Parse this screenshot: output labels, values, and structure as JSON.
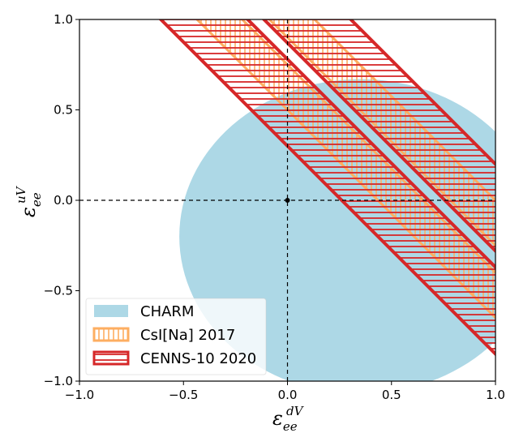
{
  "chart_data": {
    "type": "area",
    "xlim": [
      -1.0,
      1.0
    ],
    "ylim": [
      -1.0,
      1.0
    ],
    "xticks": [
      -1.0,
      -0.5,
      0.0,
      0.5,
      1.0
    ],
    "yticks": [
      -1.0,
      -0.5,
      0.0,
      0.5,
      1.0
    ],
    "xtick_labels": [
      "−1.0",
      "−0.5",
      "0.0",
      "0.5",
      "1.0"
    ],
    "ytick_labels": [
      "−1.0",
      "−0.5",
      "0.0",
      "0.5",
      "1.0"
    ],
    "xlabel": {
      "main": "ε",
      "sub": "ee",
      "sup": "dV"
    },
    "ylabel": {
      "main": "ε",
      "sub": "ee",
      "sup": "uV"
    },
    "reference_lines": {
      "x": 0.0,
      "y": 0.0,
      "style": "dashed"
    },
    "standard_model_point": {
      "x": 0.0,
      "y": 0.0
    },
    "legend_position": "lower-left",
    "series": [
      {
        "name": "CHARM",
        "shape": "ellipse",
        "center": [
          0.35,
          -0.2
        ],
        "radii": [
          0.87,
          0.87
        ],
        "color": "#add8e6",
        "fill": "solid"
      },
      {
        "name": "CsI[Na] 2017",
        "shape": "bands",
        "slope": -1.15,
        "bands": [
          [
            0.5,
            0.75
          ],
          [
            0.9,
            1.15
          ]
        ],
        "color": "#fdae61",
        "fill": "hatched-vertical"
      },
      {
        "name": "CENNS-10 2020",
        "shape": "bands",
        "slope": -1.15,
        "bands": [
          [
            0.3,
            0.78
          ],
          [
            0.87,
            1.35
          ]
        ],
        "color": "#d62728",
        "fill": "hatched-horizontal"
      }
    ],
    "legend": [
      {
        "label": "CHARM",
        "color": "#add8e6"
      },
      {
        "label": "CsI[Na] 2017",
        "color": "#fdae61"
      },
      {
        "label": "CENNS-10 2020",
        "color": "#d62728"
      }
    ]
  }
}
